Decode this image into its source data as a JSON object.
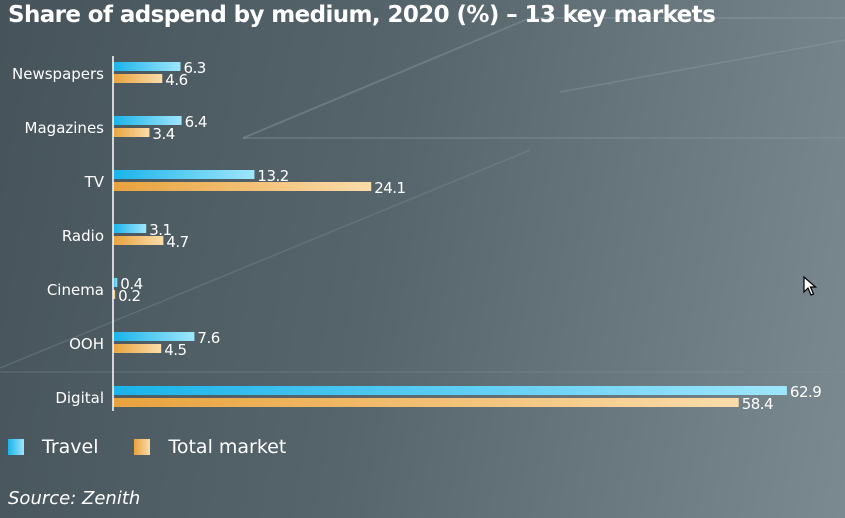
{
  "title": "Share of adspend by medium, 2020 (%) – 13 key markets",
  "source": "Source: Zenith",
  "colors": {
    "travel_start": "#19b3ea",
    "travel_end": "#9fe6fb",
    "total_start": "#e8a23c",
    "total_end": "#fbdcaa"
  },
  "chart_data": {
    "type": "bar",
    "orientation": "horizontal",
    "title": "Share of adspend by medium, 2020 (%) – 13 key markets",
    "categories": [
      "Newspapers",
      "Magazines",
      "TV",
      "Radio",
      "Cinema",
      "OOH",
      "Digital"
    ],
    "series": [
      {
        "name": "Travel",
        "values": [
          6.3,
          6.4,
          13.2,
          3.1,
          0.4,
          7.6,
          62.9
        ]
      },
      {
        "name": "Total market",
        "values": [
          4.6,
          3.4,
          24.1,
          4.7,
          0.2,
          4.5,
          58.4
        ]
      }
    ],
    "value_labels": {
      "Travel": [
        "6.3",
        "6.4",
        "13.2",
        "3.1",
        "0.4",
        "7.6",
        "62.9"
      ],
      "Total market": [
        "4.6",
        "3.4",
        "24.1",
        "4.7",
        "0.2",
        "4.5",
        "58.4"
      ]
    },
    "xlim": [
      0,
      63
    ],
    "legend_position": "bottom-left",
    "grid": false
  }
}
